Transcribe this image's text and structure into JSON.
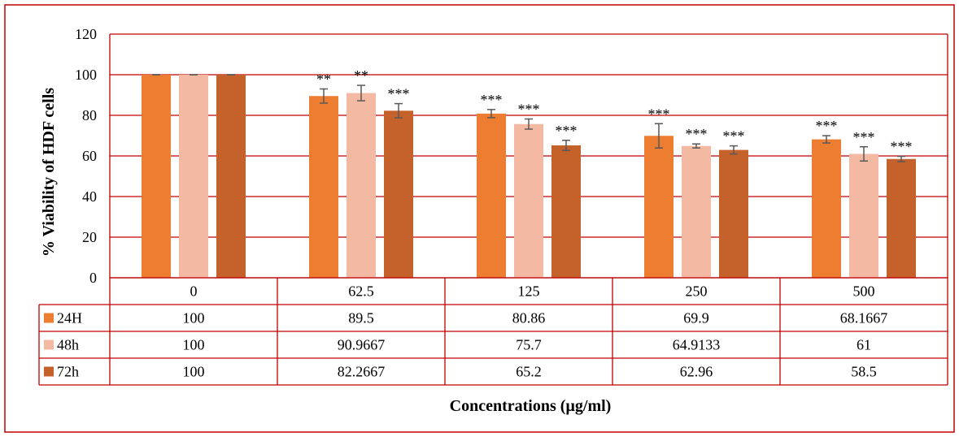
{
  "chart_data": {
    "type": "bar",
    "categories": [
      "0",
      "62.5",
      "125",
      "250",
      "500"
    ],
    "series": [
      {
        "name": "24H",
        "values": [
          100,
          89.5,
          80.86,
          69.9,
          68.1667
        ],
        "errors": [
          0,
          3.5,
          2.0,
          6.0,
          1.8
        ],
        "significance": [
          "",
          "**",
          "***",
          "***",
          "***"
        ],
        "table_values": [
          "100",
          "89.5",
          "80.86",
          "69.9",
          "68.1667"
        ]
      },
      {
        "name": "48h",
        "values": [
          100,
          90.9667,
          75.7,
          64.9133,
          61
        ],
        "errors": [
          0,
          3.8,
          2.5,
          1.0,
          3.5
        ],
        "significance": [
          "",
          "**",
          "***",
          "***",
          "***"
        ],
        "table_values": [
          "100",
          "90.9667",
          "75.7",
          "64.9133",
          "61"
        ]
      },
      {
        "name": "72h",
        "values": [
          100,
          82.2667,
          65.2,
          62.96,
          58.5
        ],
        "errors": [
          0,
          3.5,
          2.5,
          2.0,
          1.3
        ],
        "significance": [
          "",
          "***",
          "***",
          "***",
          "***"
        ],
        "table_values": [
          "100",
          "82.2667",
          "65.2",
          "62.96",
          "58.5"
        ]
      }
    ],
    "colors": [
      "#ED7D31",
      "#F4B9A2",
      "#C5612A"
    ],
    "ylabel": "% Viability of HDF cells",
    "xlabel": "Concentrations (µg/ml)",
    "ylim": [
      0,
      120
    ],
    "yticks": [
      "0",
      "20",
      "40",
      "60",
      "80",
      "100",
      "120"
    ],
    "grid": true,
    "legend": "data-table"
  }
}
